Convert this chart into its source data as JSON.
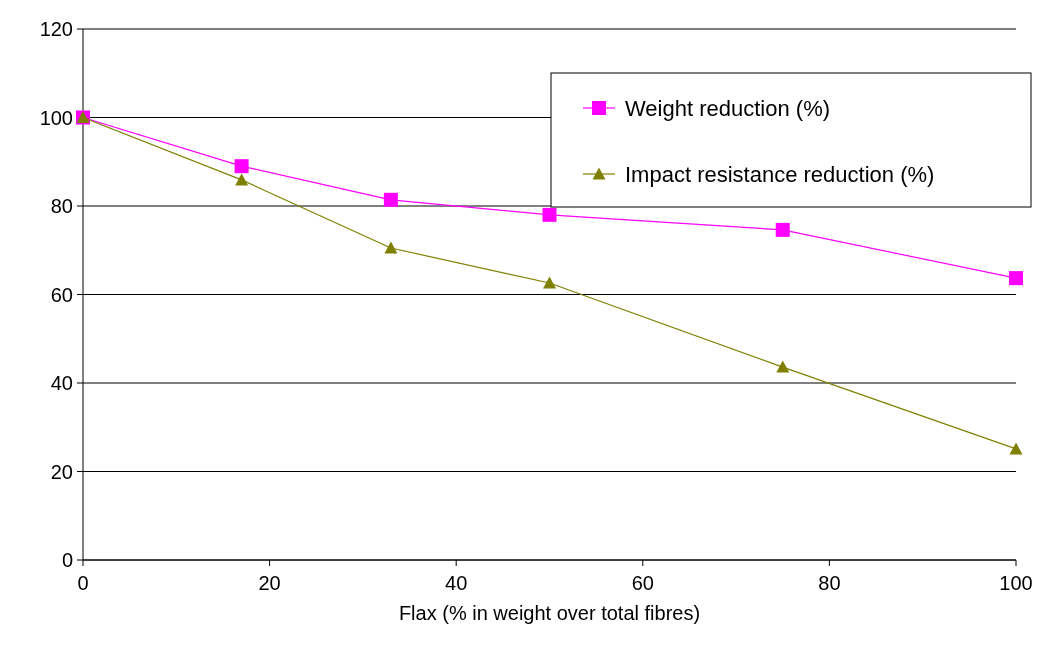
{
  "chart_data": {
    "type": "line",
    "xlabel": "Flax (% in weight over total fibres)",
    "x": [
      0,
      17,
      33,
      50,
      75,
      100
    ],
    "xlim": [
      0,
      100
    ],
    "xticks": [
      0,
      20,
      40,
      60,
      80,
      100
    ],
    "ylim": [
      0,
      120
    ],
    "yticks": [
      0,
      20,
      40,
      60,
      80,
      100,
      120
    ],
    "grid": "y",
    "legend": "top right",
    "line_style": "solid",
    "series": [
      {
        "name": "Weight reduction (%)",
        "color": "#ff00ff",
        "marker": "square",
        "values": [
          100,
          89,
          81.4,
          78,
          74.6,
          63.7
        ]
      },
      {
        "name": "Impact resistance reduction (%)",
        "color": "#808000",
        "marker": "triangle",
        "values": [
          100,
          85.9,
          70.5,
          62.6,
          43.6,
          25.1
        ]
      }
    ]
  }
}
